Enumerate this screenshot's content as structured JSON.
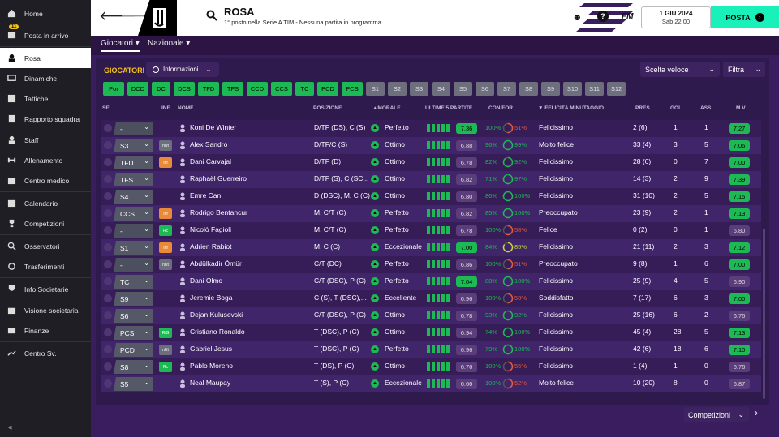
{
  "sidebar": {
    "items": [
      {
        "label": "Home",
        "icon": "home-icon"
      },
      {
        "label": "Posta in arrivo",
        "icon": "inbox-icon",
        "badge": "11"
      },
      {
        "label": "Rosa",
        "icon": "squad-icon",
        "active": true
      },
      {
        "label": "Dinamiche",
        "icon": "dynamics-icon"
      },
      {
        "label": "Tattiche",
        "icon": "tactics-icon"
      },
      {
        "label": "Rapporto squadra",
        "icon": "report-icon"
      },
      {
        "label": "Staff",
        "icon": "staff-icon"
      },
      {
        "label": "Allenamento",
        "icon": "training-icon"
      },
      {
        "label": "Centro medico",
        "icon": "medical-icon"
      },
      {
        "label": "Calendario",
        "icon": "calendar-icon"
      },
      {
        "label": "Competizioni",
        "icon": "trophy-icon"
      },
      {
        "label": "Osservatori",
        "icon": "scouting-icon"
      },
      {
        "label": "Trasferimenti",
        "icon": "transfers-icon"
      },
      {
        "label": "Info Societarie",
        "icon": "club-info-icon"
      },
      {
        "label": "Visione societaria",
        "icon": "vision-icon"
      },
      {
        "label": "Finanze",
        "icon": "finances-icon"
      },
      {
        "label": "Centro Sv.",
        "icon": "development-icon"
      }
    ]
  },
  "header": {
    "title": "ROSA",
    "subtitle": "1° posto nella Serie A TIM - Nessuna partita in programma.",
    "fm": "FM",
    "date": "1 GIU 2024",
    "time": "Sab 22:00",
    "post": "POSTA"
  },
  "tabs": [
    {
      "label": "Giocatori"
    },
    {
      "label": "Nazionale"
    }
  ],
  "toolbar": {
    "section": "GIOCATORI",
    "view": "Informazioni",
    "quick": "Scelta veloce",
    "filter": "Filtra"
  },
  "position_filters": [
    "Por",
    "DCD",
    "DC",
    "DCS",
    "TFD",
    "TFS",
    "CCD",
    "CCS",
    "TC",
    "PCD",
    "PCS",
    "S1",
    "S2",
    "S3",
    "S4",
    "S5",
    "S6",
    "S7",
    "S8",
    "S9",
    "S10",
    "S11",
    "S12"
  ],
  "columns": {
    "sel": "SEL",
    "inf": "INF",
    "nome": "NOME",
    "pos": "POSIZIONE",
    "morale": "MORALE",
    "ult5": "ULTIME 5 PARTITE",
    "confor": "CON/FOR",
    "felicita": "FELICITÀ MINUTAGGIO",
    "pres": "PRES",
    "gol": "GOL",
    "ass": "ASS",
    "mv": "M.V."
  },
  "players": [
    {
      "sel": "-",
      "inf": "",
      "nome": "Koni De Winter",
      "pos": "D/TF (DS), C (S)",
      "morale": "Perfetto",
      "ult5": "7.36",
      "con": "100%",
      "for": "51%",
      "fel": "Felicissimo",
      "pres": "2 (6)",
      "gol": "1",
      "ass": "1",
      "mv": "7.27"
    },
    {
      "sel": "S3",
      "inf": "nUt",
      "nome": "Alex Sandro",
      "pos": "D/TF/C (S)",
      "morale": "Ottimo",
      "ult5": "6.88",
      "con": "96%",
      "for": "99%",
      "fel": "Molto felice",
      "pres": "33 (4)",
      "gol": "3",
      "ass": "5",
      "mv": "7.06"
    },
    {
      "sel": "TFD",
      "inf": "Inf",
      "nome": "Dani Carvajal",
      "pos": "D/TF (D)",
      "morale": "Ottimo",
      "ult5": "6.78",
      "con": "82%",
      "for": "92%",
      "fel": "Felicissimo",
      "pres": "28 (6)",
      "gol": "0",
      "ass": "7",
      "mv": "7.00"
    },
    {
      "sel": "TFS",
      "inf": "",
      "nome": "Raphaël Guerreiro",
      "pos": "D/TF (S), C (SC...",
      "morale": "Ottimo",
      "ult5": "6.82",
      "con": "71%",
      "for": "97%",
      "fel": "Felicissimo",
      "pres": "14 (3)",
      "gol": "2",
      "ass": "9",
      "mv": "7.39"
    },
    {
      "sel": "S4",
      "inf": "",
      "nome": "Emre Can",
      "pos": "D (DSC), M, C (C)",
      "morale": "Ottimo",
      "ult5": "6.80",
      "con": "86%",
      "for": "100%",
      "fel": "Felicissimo",
      "pres": "31 (10)",
      "gol": "2",
      "ass": "5",
      "mv": "7.15"
    },
    {
      "sel": "CCS",
      "inf": "Inf",
      "nome": "Rodrigo Bentancur",
      "pos": "M, C/T (C)",
      "morale": "Perfetto",
      "ult5": "6.82",
      "con": "85%",
      "for": "100%",
      "fel": "Preoccupato",
      "pres": "23 (9)",
      "gol": "2",
      "ass": "1",
      "mv": "7.13"
    },
    {
      "sel": "-",
      "inf": "Rc",
      "nome": "Nicolò Fagioli",
      "pos": "M, C/T (C)",
      "morale": "Perfetto",
      "ult5": "6.78",
      "con": "100%",
      "for": "58%",
      "fel": "Felice",
      "pres": "0 (2)",
      "gol": "0",
      "ass": "1",
      "mv": "6.80"
    },
    {
      "sel": "S1",
      "inf": "Inf",
      "nome": "Adrien Rabiot",
      "pos": "M, C (C)",
      "morale": "Eccezionale",
      "ult5": "7.00",
      "con": "84%",
      "for": "85%",
      "fel": "Felicissimo",
      "pres": "21 (11)",
      "gol": "2",
      "ass": "3",
      "mv": "7.12"
    },
    {
      "sel": "-",
      "inf": "nUt",
      "nome": "Abdülkadir Ömür",
      "pos": "C/T (DC)",
      "morale": "Perfetto",
      "ult5": "6.86",
      "con": "100%",
      "for": "51%",
      "fel": "Preoccupato",
      "pres": "9 (8)",
      "gol": "1",
      "ass": "6",
      "mv": "7.00"
    },
    {
      "sel": "TC",
      "inf": "",
      "nome": "Dani Olmo",
      "pos": "C/T (DSC), P (C)",
      "morale": "Perfetto",
      "ult5": "7.04",
      "con": "88%",
      "for": "100%",
      "fel": "Felicissimo",
      "pres": "25 (9)",
      "gol": "4",
      "ass": "5",
      "mv": "6.90"
    },
    {
      "sel": "S9",
      "inf": "",
      "nome": "Jeremie Boga",
      "pos": "C (S), T (DSC),...",
      "morale": "Eccellente",
      "ult5": "6.96",
      "con": "100%",
      "for": "50%",
      "fel": "Soddisfatto",
      "pres": "7 (17)",
      "gol": "6",
      "ass": "3",
      "mv": "7.00"
    },
    {
      "sel": "S6",
      "inf": "",
      "nome": "Dejan Kulusevski",
      "pos": "C/T (DSC), P (C)",
      "morale": "Ottimo",
      "ult5": "6.78",
      "con": "93%",
      "for": "92%",
      "fel": "Felicissimo",
      "pres": "25 (16)",
      "gol": "6",
      "ass": "2",
      "mv": "6.76"
    },
    {
      "sel": "PCS",
      "inf": "RiG",
      "nome": "Cristiano Ronaldo",
      "pos": "T (DSC), P (C)",
      "morale": "Ottimo",
      "ult5": "6.94",
      "con": "74%",
      "for": "100%",
      "fel": "Felicissimo",
      "pres": "45 (4)",
      "gol": "28",
      "ass": "5",
      "mv": "7.13"
    },
    {
      "sel": "PCD",
      "inf": "nUt",
      "nome": "Gabriel Jesus",
      "pos": "T (DSC), P (C)",
      "morale": "Perfetto",
      "ult5": "6.96",
      "con": "79%",
      "for": "100%",
      "fel": "Felicissimo",
      "pres": "42 (6)",
      "gol": "18",
      "ass": "6",
      "mv": "7.10"
    },
    {
      "sel": "S8",
      "inf": "Rc",
      "nome": "Pablo Moreno",
      "pos": "T (DS), P (C)",
      "morale": "Ottimo",
      "ult5": "6.76",
      "con": "100%",
      "for": "55%",
      "fel": "Felicissimo",
      "pres": "1 (4)",
      "gol": "1",
      "ass": "0",
      "mv": "6.76"
    },
    {
      "sel": "S5",
      "inf": "",
      "nome": "Neal Maupay",
      "pos": "T (S), P (C)",
      "morale": "Eccezionale",
      "ult5": "6.66",
      "con": "100%",
      "for": "52%",
      "fel": "Molto felice",
      "pres": "10 (20)",
      "gol": "8",
      "ass": "0",
      "mv": "6.87"
    }
  ],
  "footer": {
    "competizioni": "Competizioni"
  },
  "colors": {
    "accent": "#19f0ba",
    "purple": "#3a1d5e",
    "green": "#1db954",
    "gold": "#f5c316"
  }
}
